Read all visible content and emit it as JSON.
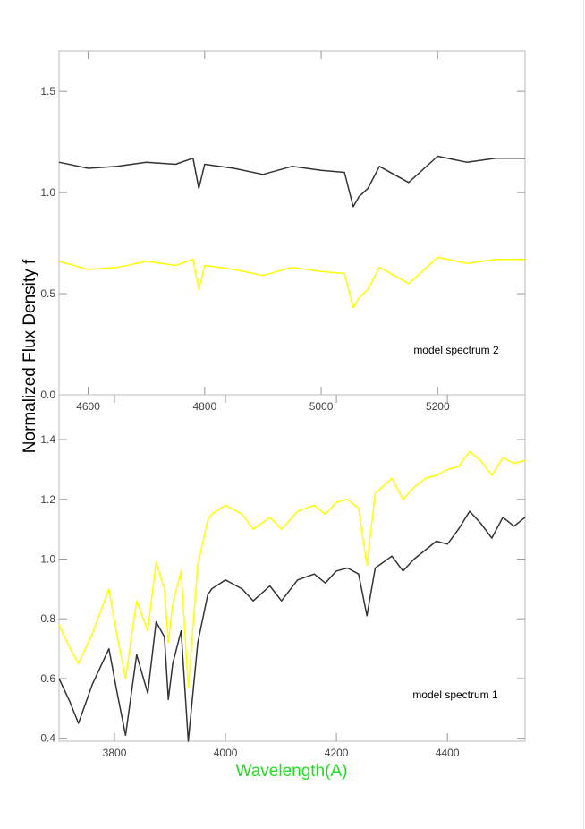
{
  "figure": {
    "ylabel": "Normalized Flux Density f",
    "xlabel": "Wavelength(A)",
    "xlabel_color": "#22dd22"
  },
  "chart_data": [
    {
      "type": "line",
      "panel": "top",
      "title": "",
      "annotation": "model spectrum 2",
      "xlabel": "",
      "ylabel": "",
      "xlim": [
        4550,
        5350
      ],
      "ylim": [
        0.0,
        1.7
      ],
      "xticks": [
        4600,
        4800,
        5000,
        5200
      ],
      "yticks": [
        0.0,
        0.5,
        1.0,
        1.5
      ],
      "ytick_labels": [
        "0.0",
        "0.5",
        "1.0",
        "1.5"
      ],
      "grid": false,
      "legend": "none",
      "series": [
        {
          "color": "#333333",
          "x": [
            4550,
            4600,
            4650,
            4700,
            4750,
            4780,
            4790,
            4800,
            4850,
            4900,
            4950,
            5000,
            5040,
            5055,
            5065,
            5080,
            5100,
            5150,
            5200,
            5250,
            5300,
            5350
          ],
          "y": [
            1.15,
            1.12,
            1.13,
            1.15,
            1.14,
            1.17,
            1.02,
            1.14,
            1.12,
            1.09,
            1.13,
            1.11,
            1.1,
            0.93,
            0.98,
            1.02,
            1.13,
            1.05,
            1.18,
            1.15,
            1.17,
            1.17
          ]
        },
        {
          "color": "#ffff00",
          "x": [
            4550,
            4600,
            4650,
            4700,
            4750,
            4780,
            4790,
            4800,
            4850,
            4900,
            4950,
            5000,
            5040,
            5055,
            5065,
            5080,
            5100,
            5150,
            5200,
            5250,
            5300,
            5350
          ],
          "y": [
            0.66,
            0.62,
            0.63,
            0.66,
            0.64,
            0.67,
            0.52,
            0.64,
            0.62,
            0.59,
            0.63,
            0.61,
            0.6,
            0.43,
            0.48,
            0.52,
            0.63,
            0.55,
            0.68,
            0.65,
            0.67,
            0.67
          ]
        }
      ]
    },
    {
      "type": "line",
      "panel": "bottom",
      "title": "",
      "annotation": "model spectrum 1",
      "xlabel": "Wavelength(A)",
      "ylabel": "",
      "xlim": [
        3700,
        4540
      ],
      "ylim": [
        0.39,
        1.55
      ],
      "xticks": [
        3800,
        4000,
        4200,
        4400
      ],
      "yticks": [
        0.4,
        0.6,
        0.8,
        1.0,
        1.2,
        1.4
      ],
      "ytick_labels": [
        "0.4",
        "0.6",
        "0.8",
        "1.0",
        "1.2",
        "1.4"
      ],
      "grid": false,
      "legend": "none",
      "series": [
        {
          "color": "#333333",
          "x": [
            3700,
            3720,
            3735,
            3760,
            3790,
            3805,
            3820,
            3840,
            3860,
            3875,
            3890,
            3897,
            3905,
            3920,
            3933,
            3950,
            3968,
            3975,
            4000,
            4030,
            4050,
            4080,
            4101,
            4130,
            4160,
            4180,
            4200,
            4220,
            4240,
            4255,
            4270,
            4300,
            4320,
            4340,
            4360,
            4380,
            4400,
            4420,
            4440,
            4460,
            4480,
            4500,
            4520,
            4540
          ],
          "y": [
            0.6,
            0.52,
            0.45,
            0.58,
            0.7,
            0.55,
            0.41,
            0.68,
            0.55,
            0.79,
            0.74,
            0.53,
            0.65,
            0.76,
            0.39,
            0.72,
            0.88,
            0.9,
            0.93,
            0.9,
            0.86,
            0.91,
            0.86,
            0.93,
            0.95,
            0.92,
            0.96,
            0.97,
            0.95,
            0.81,
            0.97,
            1.01,
            0.96,
            1.0,
            1.03,
            1.06,
            1.05,
            1.1,
            1.16,
            1.12,
            1.07,
            1.14,
            1.11,
            1.14
          ]
        },
        {
          "color": "#ffff00",
          "x": [
            3700,
            3720,
            3735,
            3760,
            3790,
            3805,
            3820,
            3840,
            3860,
            3875,
            3890,
            3897,
            3905,
            3920,
            3933,
            3950,
            3968,
            3975,
            4000,
            4030,
            4050,
            4080,
            4101,
            4130,
            4160,
            4180,
            4200,
            4220,
            4240,
            4255,
            4270,
            4300,
            4320,
            4340,
            4360,
            4380,
            4400,
            4420,
            4440,
            4460,
            4480,
            4500,
            4520,
            4540
          ],
          "y": [
            0.78,
            0.7,
            0.65,
            0.75,
            0.9,
            0.74,
            0.6,
            0.86,
            0.76,
            0.99,
            0.9,
            0.72,
            0.85,
            0.96,
            0.57,
            0.98,
            1.13,
            1.15,
            1.18,
            1.15,
            1.1,
            1.14,
            1.1,
            1.16,
            1.18,
            1.15,
            1.19,
            1.2,
            1.17,
            0.98,
            1.22,
            1.27,
            1.2,
            1.24,
            1.27,
            1.28,
            1.3,
            1.31,
            1.36,
            1.33,
            1.28,
            1.34,
            1.32,
            1.33
          ]
        }
      ]
    }
  ]
}
